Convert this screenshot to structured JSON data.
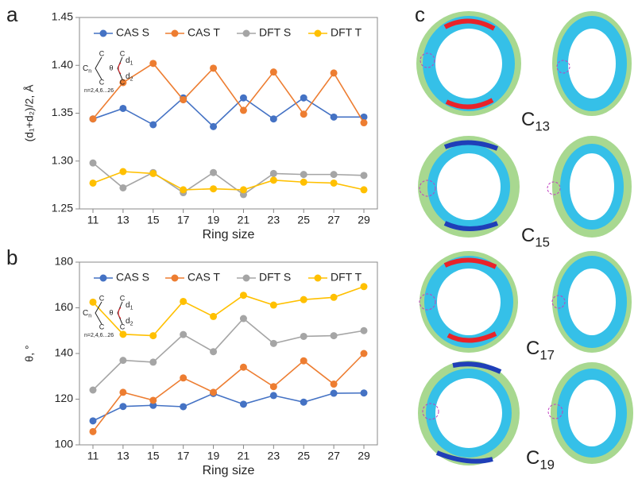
{
  "panels": [
    "a",
    "b",
    "c"
  ],
  "inset": {
    "atoms": [
      "C",
      "C",
      "C",
      "C"
    ],
    "core": "C",
    "core_sub": "n",
    "angle": "θ",
    "bonds": [
      {
        "text": "d",
        "sub": "1"
      },
      {
        "text": "d",
        "sub": "2"
      }
    ],
    "note": "n=2,4,6...26"
  },
  "structures": [
    {
      "symbol": "C",
      "subscript": "13"
    },
    {
      "symbol": "C",
      "subscript": "15"
    },
    {
      "symbol": "C",
      "subscript": "17"
    },
    {
      "symbol": "C",
      "subscript": "19"
    }
  ],
  "chart_data": [
    {
      "type": "line",
      "x_label": "Ring size",
      "y_label": "(d₁+d₂)/2, Å",
      "categories": [
        "11",
        "13",
        "15",
        "17",
        "19",
        "21",
        "23",
        "25",
        "27",
        "29"
      ],
      "ylim": [
        1.25,
        1.45
      ],
      "yticks": [
        1.25,
        {
          "value": 1.3,
          "label": "1.30"
        },
        1.35,
        {
          "value": 1.4,
          "label": "1.40"
        },
        1.45
      ],
      "grid": false,
      "series": [
        {
          "name": "CAS S",
          "color": "#4472c4",
          "values": [
            1.344,
            1.355,
            1.338,
            1.366,
            1.336,
            1.366,
            1.344,
            1.366,
            1.346,
            1.346
          ]
        },
        {
          "name": "CAS T",
          "color": "#ed7d31",
          "values": [
            1.344,
            1.382,
            1.402,
            1.364,
            1.397,
            1.353,
            1.393,
            1.349,
            1.392,
            1.34
          ]
        },
        {
          "name": "DFT S",
          "color": "#a5a5a5",
          "values": [
            1.298,
            1.272,
            1.288,
            1.267,
            1.288,
            1.265,
            1.287,
            1.286,
            1.286,
            1.285
          ]
        },
        {
          "name": "DFT T",
          "color": "#ffc000",
          "values": [
            1.277,
            1.289,
            1.287,
            1.27,
            1.271,
            1.27,
            1.28,
            1.278,
            1.277,
            1.27
          ]
        }
      ]
    },
    {
      "type": "line",
      "x_label": "Ring size",
      "y_label": "θ, °",
      "categories": [
        "11",
        "13",
        "15",
        "17",
        "19",
        "21",
        "23",
        "25",
        "27",
        "29"
      ],
      "ylim": [
        100,
        180
      ],
      "yticks": [
        100,
        120,
        140,
        160,
        180
      ],
      "grid": false,
      "series": [
        {
          "name": "CAS S",
          "color": "#4472c4",
          "values": [
            110.5,
            116.8,
            117.3,
            116.7,
            122.5,
            117.8,
            121.6,
            118.7,
            122.6,
            122.7
          ]
        },
        {
          "name": "CAS T",
          "color": "#ed7d31",
          "values": [
            105.8,
            123,
            119.5,
            129.3,
            123,
            134,
            125.5,
            136.8,
            126.6,
            140
          ]
        },
        {
          "name": "DFT S",
          "color": "#a5a5a5",
          "values": [
            124,
            137,
            136.2,
            148.3,
            140.8,
            155.3,
            144.4,
            147.5,
            147.8,
            150
          ]
        },
        {
          "name": "DFT T",
          "color": "#ffc000",
          "values": [
            162.5,
            148.4,
            147.8,
            162.8,
            156.2,
            165.5,
            161.2,
            163.6,
            164.6,
            169.3
          ]
        }
      ]
    }
  ]
}
